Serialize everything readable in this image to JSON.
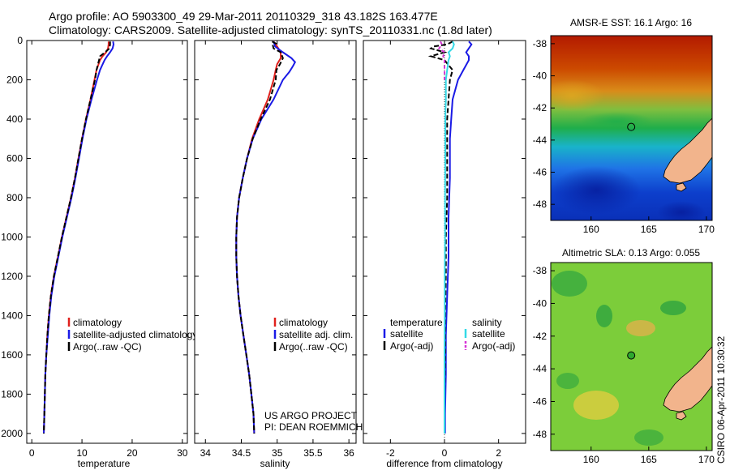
{
  "header": {
    "line1": "Argo profile: AO 5903300_49 29-Mar-2011 20110329_318 43.182S 163.477E",
    "line2": "Climatology: CARS2009. Satellite-adjusted climatology: synTS_20110331.nc (1.8d later)"
  },
  "footer": {
    "project": "US ARGO PROJECT",
    "pi": "PI: DEAN ROEMMICH",
    "stamp": "CSIRO 06-Apr-2011 10:30:32"
  },
  "colors": {
    "climatology": "#e0201c",
    "satellite": "#1a1ae6",
    "argo": "#000000",
    "sat_salinity": "#33d9e6",
    "argo_salinity": "#d633d6",
    "land": "#f2b48c"
  },
  "chart_data": [
    {
      "type": "line",
      "name": "temperature-profile",
      "xlabel": "temperature",
      "ylabel": "",
      "xlim": [
        -1,
        31
      ],
      "ylim": [
        2050,
        0
      ],
      "xticks": [
        "0",
        "10",
        "20",
        "30"
      ],
      "xtick_values": [
        0,
        10,
        20,
        30
      ],
      "yticks": [
        "0",
        "200",
        "400",
        "600",
        "800",
        "1000",
        "1200",
        "1400",
        "1600",
        "1800",
        "2000"
      ],
      "ytick_values": [
        0,
        200,
        400,
        600,
        800,
        1000,
        1200,
        1400,
        1600,
        1800,
        2000
      ],
      "legend": [
        "climatology",
        "satellite-adjusted climatology",
        "Argo(..raw -QC)"
      ],
      "series": [
        {
          "name": "climatology",
          "depth": [
            5,
            20,
            40,
            60,
            80,
            100,
            150,
            200,
            300,
            400,
            500,
            600,
            700,
            800,
            900,
            1000,
            1100,
            1200,
            1300,
            1400,
            1500,
            1600,
            1700,
            1800,
            1900,
            2000
          ],
          "values": [
            15.3,
            15.3,
            15.2,
            14.8,
            14.1,
            13.6,
            12.9,
            12.5,
            11.7,
            10.8,
            10.0,
            9.3,
            8.6,
            7.8,
            6.9,
            6.0,
            5.2,
            4.4,
            3.8,
            3.4,
            3.1,
            2.9,
            2.7,
            2.6,
            2.5,
            2.4
          ]
        },
        {
          "name": "satellite",
          "depth": [
            5,
            20,
            40,
            60,
            80,
            100,
            150,
            200,
            300,
            400,
            500,
            600,
            700,
            800,
            900,
            1000,
            1100,
            1200,
            1300,
            1400,
            1500,
            1600,
            1700,
            1800,
            1900,
            2000
          ],
          "values": [
            16.2,
            16.3,
            16.1,
            15.6,
            15.0,
            14.5,
            13.6,
            13.0,
            11.9,
            10.9,
            10.1,
            9.4,
            8.7,
            7.9,
            7.0,
            6.1,
            5.3,
            4.5,
            3.9,
            3.5,
            3.2,
            2.9,
            2.7,
            2.6,
            2.5,
            2.4
          ]
        },
        {
          "name": "argo",
          "depth": [
            5,
            20,
            40,
            60,
            80,
            100,
            150,
            200,
            300,
            400,
            500,
            600,
            700,
            800,
            900,
            1000,
            1100,
            1200,
            1300,
            1400,
            1500,
            1600,
            1700,
            1800,
            1900,
            2000
          ],
          "values": [
            15.6,
            15.6,
            15.5,
            14.6,
            13.6,
            13.4,
            12.9,
            12.6,
            11.7,
            10.8,
            10.0,
            9.3,
            8.6,
            7.8,
            6.9,
            6.0,
            5.2,
            4.4,
            3.8,
            3.4,
            3.1,
            2.9,
            2.7,
            2.6,
            2.5,
            2.4
          ]
        }
      ]
    },
    {
      "type": "line",
      "name": "salinity-profile",
      "xlabel": "salinity",
      "xlim": [
        33.85,
        36.1
      ],
      "ylim": [
        2050,
        0
      ],
      "xticks": [
        "34",
        "34.5",
        "35",
        "35.5",
        "36"
      ],
      "xtick_values": [
        34,
        34.5,
        35,
        35.5,
        36
      ],
      "legend": [
        "climatology",
        "satellite adj. clim.",
        "Argo(..raw -QC)"
      ],
      "series": [
        {
          "name": "climatology",
          "depth": [
            5,
            30,
            60,
            90,
            120,
            150,
            200,
            300,
            400,
            500,
            600,
            700,
            800,
            900,
            1000,
            1100,
            1200,
            1300,
            1400,
            1500,
            1600,
            1700,
            1800,
            1900,
            2000
          ],
          "values": [
            34.95,
            35.0,
            35.05,
            35.05,
            35.0,
            34.98,
            34.95,
            34.87,
            34.75,
            34.65,
            34.58,
            34.52,
            34.47,
            34.44,
            34.43,
            34.43,
            34.44,
            34.46,
            34.49,
            34.53,
            34.57,
            34.61,
            34.64,
            34.67,
            34.68
          ]
        },
        {
          "name": "satellite",
          "depth": [
            5,
            30,
            60,
            90,
            110,
            130,
            160,
            200,
            300,
            400,
            500,
            600,
            700,
            800,
            900,
            1000,
            1100,
            1200,
            1300,
            1400,
            1500,
            1600,
            1700,
            1800,
            1900,
            2000
          ],
          "values": [
            34.95,
            34.97,
            35.08,
            35.2,
            35.25,
            35.22,
            35.17,
            35.08,
            34.95,
            34.78,
            34.66,
            34.58,
            34.52,
            34.47,
            34.44,
            34.43,
            34.43,
            34.44,
            34.46,
            34.49,
            34.53,
            34.57,
            34.61,
            34.64,
            34.67,
            34.68
          ]
        },
        {
          "name": "argo",
          "depth": [
            5,
            15,
            25,
            40,
            60,
            90,
            120,
            150,
            200,
            300,
            400,
            500,
            600,
            700,
            800,
            900,
            1000,
            1100,
            1200,
            1300,
            1400,
            1500,
            1600,
            1700,
            1800,
            1900,
            2000
          ],
          "values": [
            34.93,
            34.98,
            34.94,
            34.95,
            35.05,
            35.08,
            35.04,
            34.99,
            34.98,
            34.9,
            34.77,
            34.66,
            34.58,
            34.52,
            34.47,
            34.44,
            34.43,
            34.43,
            34.44,
            34.46,
            34.49,
            34.53,
            34.57,
            34.61,
            34.64,
            34.67,
            34.68
          ]
        }
      ]
    },
    {
      "type": "line",
      "name": "difference-profile",
      "xlabel": "difference from climatology",
      "xlim": [
        -3,
        3
      ],
      "ylim": [
        2050,
        0
      ],
      "xticks": [
        "-2",
        "0",
        "2"
      ],
      "xtick_values": [
        -2,
        0,
        2
      ],
      "legend_temperature_title": "temperature",
      "legend_salinity_title": "salinity",
      "legend_temperature": [
        "satellite",
        "Argo(-adj)"
      ],
      "legend_salinity": [
        "satellite",
        "Argo(-adj)"
      ],
      "series": [
        {
          "name": "temperature satellite",
          "depth": [
            5,
            20,
            40,
            60,
            80,
            100,
            150,
            200,
            300,
            400,
            500,
            700,
            900,
            1100,
            1300,
            1500,
            1700,
            1900,
            2000
          ],
          "values": [
            0.9,
            1.0,
            0.9,
            0.8,
            0.9,
            0.9,
            0.7,
            0.5,
            0.3,
            0.25,
            0.2,
            0.2,
            0.15,
            0.15,
            0.1,
            0.05,
            0.05,
            0.02,
            0.02
          ]
        },
        {
          "name": "temperature argo",
          "depth": [
            5,
            20,
            30,
            40,
            60,
            80,
            100,
            150,
            200,
            300,
            400,
            600,
            800,
            1000,
            1200,
            1400,
            1600,
            1800,
            2000
          ],
          "values": [
            0.3,
            0.1,
            -0.4,
            -0.5,
            0.0,
            -0.5,
            0.0,
            0.3,
            0.2,
            0.15,
            0.1,
            0.1,
            0.1,
            0.05,
            0.05,
            0.02,
            0.02,
            0.0,
            0.0
          ]
        },
        {
          "name": "salinity satellite",
          "depth": [
            5,
            20,
            40,
            60,
            80,
            100,
            150,
            200,
            300,
            400,
            600,
            800,
            1000,
            1200,
            1400,
            1600,
            1800,
            2000
          ],
          "values": [
            0.3,
            0.35,
            0.3,
            0.15,
            0.2,
            0.15,
            0.1,
            0.05,
            0.05,
            0.03,
            0.03,
            0.02,
            0.02,
            0.01,
            0.01,
            0.0,
            0.0,
            0.0
          ]
        },
        {
          "name": "salinity argo",
          "depth": [
            5,
            20,
            40,
            60,
            80,
            100,
            150,
            200
          ],
          "values": [
            -0.15,
            -0.1,
            -0.2,
            0.0,
            -0.05,
            0.0,
            0.0,
            0.0
          ]
        }
      ]
    },
    {
      "type": "heatmap",
      "name": "sst-map",
      "title": "AMSR-E SST: 16.1  Argo: 16",
      "xlim": [
        156.5,
        170.5
      ],
      "ylim": [
        -49,
        -37.5
      ],
      "xticks": [
        "160",
        "165",
        "170"
      ],
      "xtick_values": [
        160,
        165,
        170
      ],
      "yticks": [
        "-38",
        "-40",
        "-42",
        "-44",
        "-46",
        "-48"
      ],
      "ytick_values": [
        -38,
        -40,
        -42,
        -44,
        -46,
        -48
      ],
      "marker": {
        "lon": 163.477,
        "lat": -43.182
      }
    },
    {
      "type": "heatmap",
      "name": "sla-map",
      "title": "Altimetric SLA: 0.13  Argo: 0.055",
      "xlim": [
        156.5,
        170.5
      ],
      "ylim": [
        -49,
        -37.5
      ],
      "xticks": [
        "160",
        "165",
        "170"
      ],
      "xtick_values": [
        160,
        165,
        170
      ],
      "yticks": [
        "-38",
        "-40",
        "-42",
        "-44",
        "-46",
        "-48"
      ],
      "ytick_values": [
        -38,
        -40,
        -42,
        -44,
        -46,
        -48
      ],
      "marker": {
        "lon": 163.477,
        "lat": -43.182
      }
    }
  ]
}
